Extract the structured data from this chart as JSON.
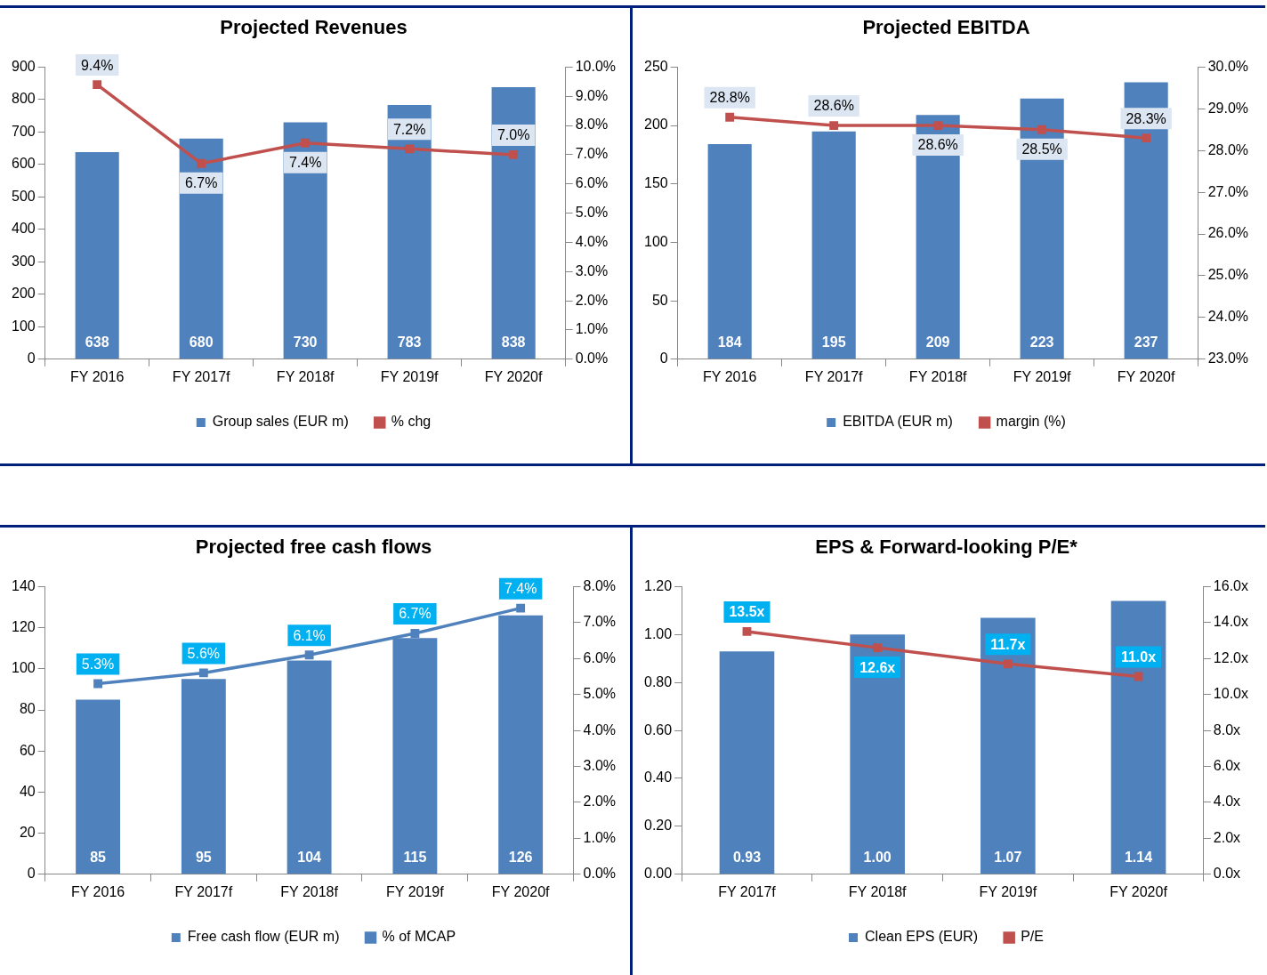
{
  "chart_data": [
    {
      "type": "bar",
      "title": "Projected Revenues",
      "categories": [
        "FY 2016",
        "FY 2017f",
        "FY 2018f",
        "FY 2019f",
        "FY 2020f"
      ],
      "ylim": [
        0,
        900
      ],
      "yticks": [
        0,
        100,
        200,
        300,
        400,
        500,
        600,
        700,
        800,
        900
      ],
      "y2lim": [
        0,
        10
      ],
      "y2ticks": [
        {
          "value": 0,
          "label": "0.0%"
        },
        {
          "value": 1,
          "label": "1.0%"
        },
        {
          "value": 2,
          "label": "2.0%"
        },
        {
          "value": 3,
          "label": "3.0%"
        },
        {
          "value": 4,
          "label": "4.0%"
        },
        {
          "value": 5,
          "label": "5.0%"
        },
        {
          "value": 6,
          "label": "6.0%"
        },
        {
          "value": 7,
          "label": "7.0%"
        },
        {
          "value": 8,
          "label": "8.0%"
        },
        {
          "value": 9,
          "label": "9.0%"
        },
        {
          "value": 10,
          "label": "10.0%"
        }
      ],
      "legend": "bottom",
      "marker": "square",
      "grid": false,
      "series": [
        {
          "name": "Group sales (EUR m)",
          "color": "#4f81bd",
          "values": [
            638,
            680,
            730,
            783,
            838
          ],
          "value_labels": [
            "638",
            "680",
            "730",
            "783",
            "838"
          ]
        },
        {
          "type": "line",
          "axis": "y2",
          "name": "% chg",
          "color": "#c0504d",
          "values": [
            9.4,
            6.7,
            7.4,
            7.2,
            7.0
          ],
          "value_labels": [
            "9.4%",
            "6.7%",
            "7.4%",
            "7.2%",
            "7.0%"
          ]
        }
      ]
    },
    {
      "type": "bar",
      "title": "Projected EBITDA",
      "categories": [
        "FY 2016",
        "FY 2017f",
        "FY 2018f",
        "FY 2019f",
        "FY 2020f"
      ],
      "ylim": [
        0,
        250
      ],
      "yticks": [
        0,
        50,
        100,
        150,
        200,
        250
      ],
      "y2lim": [
        23,
        30
      ],
      "y2ticks": [
        {
          "value": 23,
          "label": "23.0%"
        },
        {
          "value": 24,
          "label": "24.0%"
        },
        {
          "value": 25,
          "label": "25.0%"
        },
        {
          "value": 26,
          "label": "26.0%"
        },
        {
          "value": 27,
          "label": "27.0%"
        },
        {
          "value": 28,
          "label": "28.0%"
        },
        {
          "value": 29,
          "label": "29.0%"
        },
        {
          "value": 30,
          "label": "30.0%"
        }
      ],
      "legend": "bottom",
      "marker": "square",
      "grid": false,
      "series": [
        {
          "name": "EBITDA (EUR m)",
          "color": "#4f81bd",
          "values": [
            184,
            195,
            209,
            223,
            237
          ],
          "value_labels": [
            "184",
            "195",
            "209",
            "223",
            "237"
          ]
        },
        {
          "type": "line",
          "axis": "y2",
          "name": "margin (%)",
          "color": "#c0504d",
          "values": [
            28.8,
            28.6,
            28.6,
            28.5,
            28.3
          ],
          "value_labels": [
            "28.8%",
            "28.6%",
            "28.6%",
            "28.5%",
            "28.3%"
          ]
        }
      ]
    },
    {
      "type": "bar",
      "title": "Projected free cash flows",
      "categories": [
        "FY 2016",
        "FY 2017f",
        "FY 2018f",
        "FY 2019f",
        "FY 2020f"
      ],
      "ylim": [
        0,
        140
      ],
      "yticks": [
        0,
        20,
        40,
        60,
        80,
        100,
        120,
        140
      ],
      "y2lim": [
        0,
        8
      ],
      "y2ticks": [
        {
          "value": 0,
          "label": "0.0%"
        },
        {
          "value": 1,
          "label": "1.0%"
        },
        {
          "value": 2,
          "label": "2.0%"
        },
        {
          "value": 3,
          "label": "3.0%"
        },
        {
          "value": 4,
          "label": "4.0%"
        },
        {
          "value": 5,
          "label": "5.0%"
        },
        {
          "value": 6,
          "label": "6.0%"
        },
        {
          "value": 7,
          "label": "7.0%"
        },
        {
          "value": 8,
          "label": "8.0%"
        }
      ],
      "legend": "bottom",
      "marker": "square",
      "grid": false,
      "series": [
        {
          "name": "Free cash flow (EUR m)",
          "color": "#4f81bd",
          "values": [
            85,
            95,
            104,
            115,
            126
          ],
          "value_labels": [
            "85",
            "95",
            "104",
            "115",
            "126"
          ]
        },
        {
          "type": "line",
          "axis": "y2",
          "name": "% of MCAP",
          "color": "#4f81bd",
          "values": [
            5.3,
            5.6,
            6.1,
            6.7,
            7.4
          ],
          "value_labels": [
            "5.3%",
            "5.6%",
            "6.1%",
            "6.7%",
            "7.4%"
          ]
        }
      ]
    },
    {
      "type": "bar",
      "title": "EPS & Forward-looking P/E*",
      "categories": [
        "FY 2017f",
        "FY 2018f",
        "FY 2019f",
        "FY 2020f"
      ],
      "ylim": [
        0,
        1.2
      ],
      "yticks": [
        {
          "value": 0,
          "label": "0.00"
        },
        {
          "value": 0.2,
          "label": "0.20"
        },
        {
          "value": 0.4,
          "label": "0.40"
        },
        {
          "value": 0.6,
          "label": "0.60"
        },
        {
          "value": 0.8,
          "label": "0.80"
        },
        {
          "value": 1,
          "label": "1.00"
        },
        {
          "value": 1.2,
          "label": "1.20"
        }
      ],
      "y2lim": [
        0,
        16
      ],
      "y2ticks": [
        {
          "value": 0,
          "label": "0.0x"
        },
        {
          "value": 2,
          "label": "2.0x"
        },
        {
          "value": 4,
          "label": "4.0x"
        },
        {
          "value": 6,
          "label": "6.0x"
        },
        {
          "value": 8,
          "label": "8.0x"
        },
        {
          "value": 10,
          "label": "10.0x"
        },
        {
          "value": 12,
          "label": "12.0x"
        },
        {
          "value": 14,
          "label": "14.0x"
        },
        {
          "value": 16,
          "label": "16.0x"
        }
      ],
      "legend": "bottom",
      "marker": "square",
      "grid": false,
      "series": [
        {
          "name": "Clean EPS (EUR)",
          "color": "#4f81bd",
          "values": [
            0.93,
            1.0,
            1.07,
            1.14
          ],
          "value_labels": [
            "0.93",
            "1.00",
            "1.07",
            "1.14"
          ]
        },
        {
          "type": "line",
          "axis": "y2",
          "name": "P/E",
          "color": "#c0504d",
          "values": [
            13.5,
            12.6,
            11.7,
            11.0
          ],
          "value_labels": [
            "13.5x",
            "12.6x",
            "11.7x",
            "11.0x"
          ]
        }
      ]
    }
  ]
}
